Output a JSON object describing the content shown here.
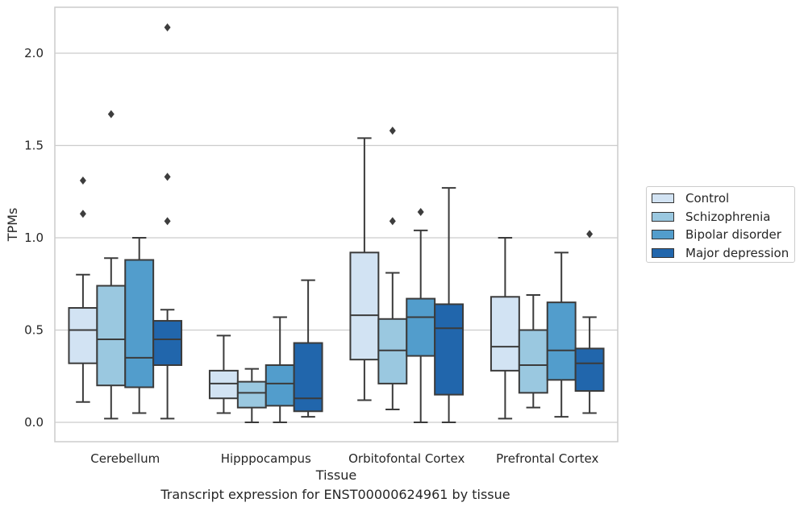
{
  "caption": "Transcript expression for ENST00000624961 by tissue",
  "colors": {
    "Control": "#d2e3f3",
    "Schizophrenia": "#9ac8e0",
    "Bipolar disorder": "#529dcc",
    "Major depression": "#2166ac",
    "grid": "#cccccc",
    "edge": "#3b3b3b"
  },
  "chart_data": {
    "type": "box",
    "xlabel": "Tissue",
    "ylabel": "TPMs",
    "ylim": [
      -0.1,
      2.25
    ],
    "yticks": [
      0.0,
      0.5,
      1.0,
      1.5,
      2.0
    ],
    "ytick_labels": [
      "0.0",
      "0.5",
      "1.0",
      "1.5",
      "2.0"
    ],
    "grid": true,
    "legend_position": "right, outside plot",
    "categories": [
      "Cerebellum",
      "Hipppocampus",
      "Orbitofontal Cortex",
      "Prefrontal Cortex"
    ],
    "series": [
      {
        "name": "Control",
        "boxes": [
          {
            "whislo": 0.11,
            "q1": 0.32,
            "med": 0.5,
            "q3": 0.62,
            "whishi": 0.8,
            "fliers": [
              1.13,
              1.31
            ]
          },
          {
            "whislo": 0.05,
            "q1": 0.13,
            "med": 0.21,
            "q3": 0.28,
            "whishi": 0.47,
            "fliers": []
          },
          {
            "whislo": 0.12,
            "q1": 0.34,
            "med": 0.58,
            "q3": 0.92,
            "whishi": 1.54,
            "fliers": []
          },
          {
            "whislo": 0.02,
            "q1": 0.28,
            "med": 0.41,
            "q3": 0.68,
            "whishi": 1.0,
            "fliers": []
          }
        ]
      },
      {
        "name": "Schizophrenia",
        "boxes": [
          {
            "whislo": 0.02,
            "q1": 0.2,
            "med": 0.45,
            "q3": 0.74,
            "whishi": 0.89,
            "fliers": [
              1.67
            ]
          },
          {
            "whislo": 0.0,
            "q1": 0.08,
            "med": 0.16,
            "q3": 0.22,
            "whishi": 0.29,
            "fliers": []
          },
          {
            "whislo": 0.07,
            "q1": 0.21,
            "med": 0.39,
            "q3": 0.56,
            "whishi": 0.81,
            "fliers": [
              1.09,
              1.58
            ]
          },
          {
            "whislo": 0.08,
            "q1": 0.16,
            "med": 0.31,
            "q3": 0.5,
            "whishi": 0.69,
            "fliers": []
          }
        ]
      },
      {
        "name": "Bipolar disorder",
        "boxes": [
          {
            "whislo": 0.05,
            "q1": 0.19,
            "med": 0.35,
            "q3": 0.88,
            "whishi": 1.0,
            "fliers": []
          },
          {
            "whislo": 0.0,
            "q1": 0.09,
            "med": 0.21,
            "q3": 0.31,
            "whishi": 0.57,
            "fliers": []
          },
          {
            "whislo": 0.0,
            "q1": 0.36,
            "med": 0.57,
            "q3": 0.67,
            "whishi": 1.04,
            "fliers": [
              1.14
            ]
          },
          {
            "whislo": 0.03,
            "q1": 0.23,
            "med": 0.39,
            "q3": 0.65,
            "whishi": 0.92,
            "fliers": []
          }
        ]
      },
      {
        "name": "Major depression",
        "boxes": [
          {
            "whislo": 0.02,
            "q1": 0.31,
            "med": 0.45,
            "q3": 0.55,
            "whishi": 0.61,
            "fliers": [
              1.09,
              1.33,
              2.14
            ]
          },
          {
            "whislo": 0.03,
            "q1": 0.06,
            "med": 0.13,
            "q3": 0.43,
            "whishi": 0.77,
            "fliers": []
          },
          {
            "whislo": 0.0,
            "q1": 0.15,
            "med": 0.51,
            "q3": 0.64,
            "whishi": 1.27,
            "fliers": []
          },
          {
            "whislo": 0.05,
            "q1": 0.17,
            "med": 0.32,
            "q3": 0.4,
            "whishi": 0.57,
            "fliers": [
              1.02
            ]
          }
        ]
      }
    ]
  }
}
